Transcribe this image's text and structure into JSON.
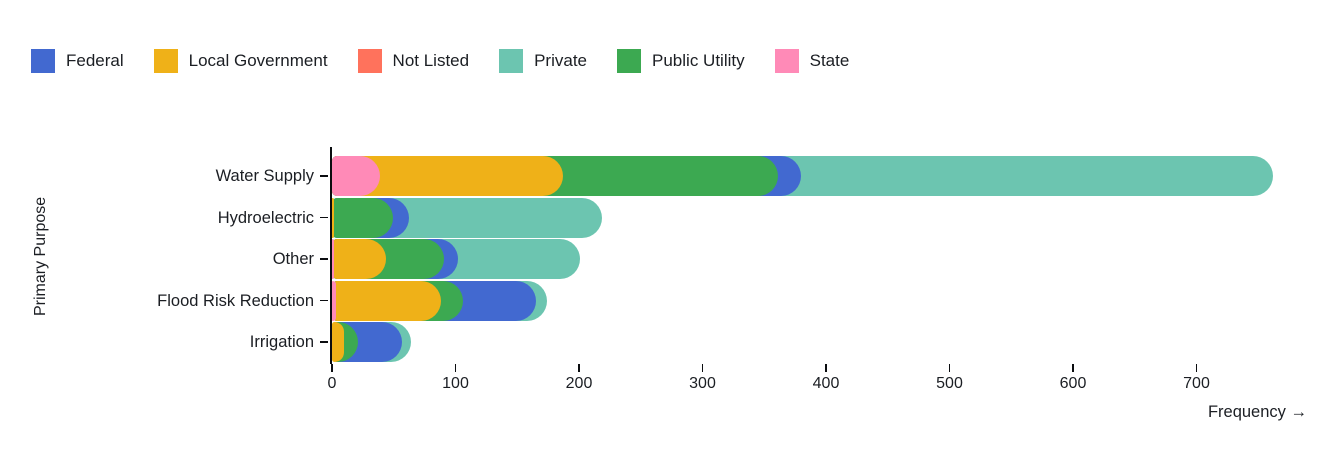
{
  "chart_data": {
    "type": "bar",
    "orientation": "horizontal",
    "variant": "layered-rounded-bars-from-zero",
    "title": "",
    "xlabel": "Frequency →",
    "ylabel": "Primary Purpose",
    "xlim": [
      0,
      765
    ],
    "x_ticks": [
      0,
      100,
      200,
      300,
      400,
      500,
      600,
      700
    ],
    "grid": false,
    "legend_position": "top-left",
    "categories": [
      "Water Supply",
      "Hydroelectric",
      "Other",
      "Flood Risk Reduction",
      "Irrigation"
    ],
    "series": [
      {
        "name": "Federal",
        "color": "#4269d0",
        "values": [
          380,
          62,
          102,
          165,
          57
        ]
      },
      {
        "name": "Local Government",
        "color": "#efb118",
        "values": [
          187,
          2,
          44,
          88,
          10
        ]
      },
      {
        "name": "Not Listed",
        "color": "#ff725c",
        "values": [
          0,
          0,
          0,
          0,
          0
        ]
      },
      {
        "name": "Private",
        "color": "#6cc5b0",
        "values": [
          762,
          219,
          201,
          174,
          64
        ]
      },
      {
        "name": "Public Utility",
        "color": "#3ca951",
        "values": [
          361,
          49,
          91,
          106,
          21
        ]
      },
      {
        "name": "State",
        "color": "#ff8ab7",
        "values": [
          39,
          0,
          2,
          3,
          0
        ]
      }
    ],
    "colors": {
      "text": "#1b1e23",
      "axis": "#0b0d10",
      "background": "#ffffff"
    }
  }
}
